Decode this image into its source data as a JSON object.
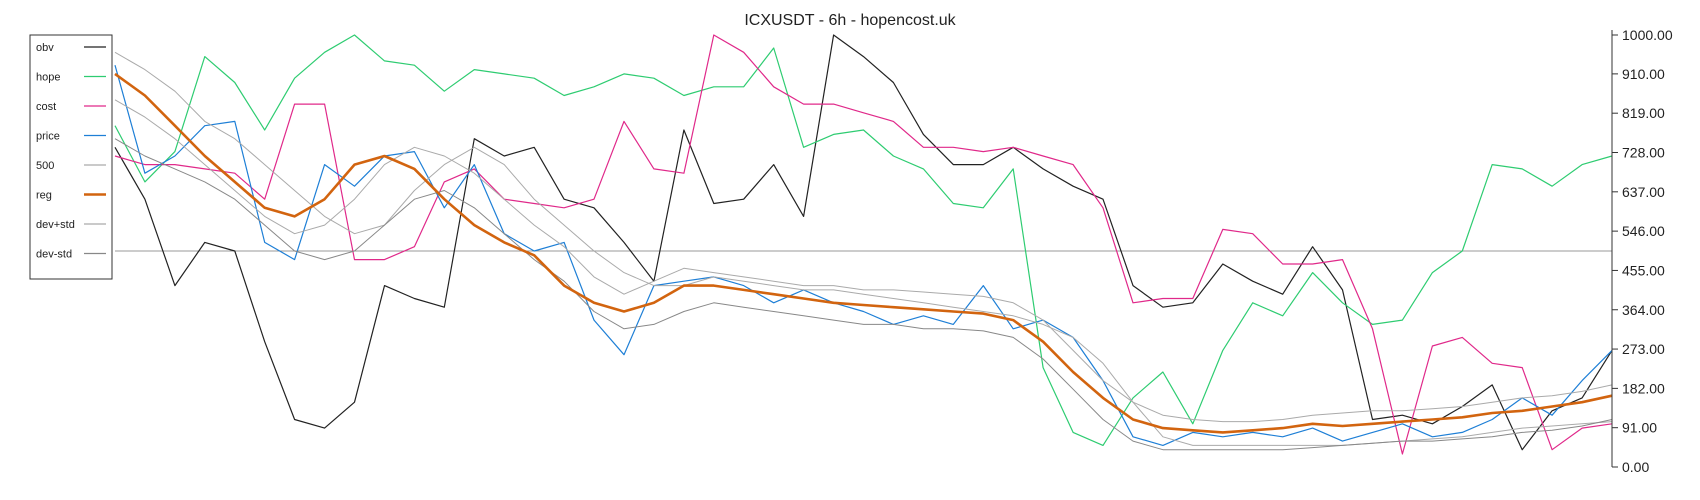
{
  "chart_data": {
    "type": "line",
    "title": "ICXUSDT - 6h - hopencost.uk",
    "xlabel": "",
    "ylabel": "",
    "ylim": [
      0,
      1000
    ],
    "y_ticks": [
      "0.00",
      "91.00",
      "182.00",
      "273.00",
      "364.00",
      "455.00",
      "546.00",
      "637.00",
      "728.00",
      "819.00",
      "910.00",
      "1000.00"
    ],
    "y_tick_values": [
      0,
      91,
      182,
      273,
      364,
      455,
      546,
      637,
      728,
      819,
      910,
      1000
    ],
    "y_axis_position": "right",
    "grid": false,
    "legend_position": "top-left",
    "reference_line": 500,
    "x": [
      0,
      0.02,
      0.04,
      0.06,
      0.08,
      0.1,
      0.12,
      0.14,
      0.16,
      0.18,
      0.2,
      0.22,
      0.24,
      0.26,
      0.28,
      0.3,
      0.32,
      0.34,
      0.36,
      0.38,
      0.4,
      0.42,
      0.44,
      0.46,
      0.48,
      0.5,
      0.52,
      0.54,
      0.56,
      0.58,
      0.6,
      0.62,
      0.64,
      0.66,
      0.68,
      0.7,
      0.72,
      0.74,
      0.76,
      0.78,
      0.8,
      0.82,
      0.84,
      0.86,
      0.88,
      0.9,
      0.92,
      0.94,
      0.96,
      0.98,
      1.0
    ],
    "series": [
      {
        "name": "obv",
        "color": "#222222",
        "width": 1.2,
        "values": [
          740,
          620,
          420,
          520,
          500,
          290,
          110,
          90,
          150,
          420,
          390,
          370,
          760,
          720,
          740,
          620,
          600,
          520,
          430,
          780,
          610,
          620,
          700,
          580,
          1000,
          950,
          890,
          770,
          700,
          700,
          740,
          690,
          650,
          620,
          420,
          370,
          380,
          470,
          430,
          400,
          510,
          410,
          110,
          120,
          100,
          140,
          190,
          40,
          130,
          160,
          270
        ]
      },
      {
        "name": "hope",
        "color": "#2ecc71",
        "width": 1.2,
        "values": [
          790,
          660,
          730,
          950,
          890,
          780,
          900,
          960,
          1000,
          940,
          930,
          870,
          920,
          910,
          900,
          860,
          880,
          910,
          900,
          860,
          880,
          880,
          970,
          740,
          770,
          780,
          720,
          690,
          610,
          600,
          690,
          230,
          80,
          50,
          160,
          220,
          100,
          270,
          380,
          350,
          450,
          380,
          330,
          340,
          450,
          500,
          700,
          690,
          650,
          700,
          720
        ]
      },
      {
        "name": "cost",
        "color": "#e0298a",
        "width": 1.2,
        "values": [
          720,
          700,
          700,
          690,
          680,
          620,
          840,
          840,
          480,
          480,
          510,
          660,
          690,
          620,
          610,
          600,
          620,
          800,
          690,
          680,
          1000,
          960,
          880,
          840,
          840,
          820,
          800,
          740,
          740,
          730,
          740,
          720,
          700,
          600,
          380,
          390,
          390,
          550,
          540,
          470,
          470,
          480,
          320,
          30,
          280,
          300,
          240,
          230,
          40,
          90,
          100
        ]
      },
      {
        "name": "price",
        "color": "#1e7fd6",
        "width": 1.2,
        "values": [
          930,
          680,
          720,
          790,
          800,
          520,
          480,
          700,
          650,
          720,
          730,
          600,
          700,
          540,
          500,
          520,
          340,
          260,
          420,
          430,
          440,
          420,
          380,
          410,
          380,
          360,
          330,
          350,
          330,
          420,
          320,
          340,
          300,
          200,
          70,
          50,
          80,
          70,
          80,
          70,
          90,
          60,
          80,
          100,
          70,
          80,
          110,
          160,
          120,
          200,
          270
        ]
      },
      {
        "name": "500",
        "color": "#aaaaaa",
        "width": 1.0,
        "values": [
          960,
          920,
          870,
          800,
          760,
          700,
          640,
          580,
          540,
          560,
          640,
          700,
          740,
          700,
          620,
          560,
          500,
          450,
          420,
          420,
          440,
          430,
          420,
          410,
          410,
          400,
          390,
          380,
          370,
          360,
          350,
          330,
          300,
          240,
          150,
          70,
          50,
          50,
          50,
          50,
          50,
          50,
          55,
          60,
          65,
          70,
          80,
          90,
          95,
          100,
          105
        ]
      },
      {
        "name": "reg",
        "color": "#d2640f",
        "width": 2.6,
        "values": [
          910,
          860,
          790,
          720,
          660,
          600,
          580,
          620,
          700,
          720,
          690,
          620,
          560,
          520,
          490,
          420,
          380,
          360,
          380,
          420,
          420,
          410,
          400,
          390,
          380,
          375,
          370,
          365,
          360,
          355,
          340,
          290,
          220,
          160,
          110,
          90,
          85,
          80,
          85,
          90,
          100,
          95,
          100,
          105,
          110,
          115,
          125,
          130,
          140,
          150,
          165
        ]
      },
      {
        "name": "dev+std",
        "color": "#aaaaaa",
        "width": 1.0,
        "values": [
          850,
          810,
          760,
          700,
          640,
          580,
          540,
          560,
          620,
          700,
          740,
          720,
          680,
          620,
          560,
          510,
          440,
          400,
          430,
          460,
          450,
          440,
          430,
          420,
          420,
          410,
          410,
          405,
          400,
          395,
          380,
          340,
          270,
          200,
          150,
          120,
          110,
          105,
          105,
          110,
          120,
          125,
          130,
          130,
          135,
          140,
          150,
          160,
          165,
          175,
          190
        ]
      },
      {
        "name": "dev-std",
        "color": "#888888",
        "width": 1.0,
        "values": [
          760,
          720,
          690,
          660,
          620,
          560,
          500,
          480,
          500,
          560,
          620,
          640,
          600,
          540,
          480,
          430,
          360,
          320,
          330,
          360,
          380,
          370,
          360,
          350,
          340,
          330,
          330,
          320,
          320,
          315,
          300,
          250,
          180,
          110,
          60,
          40,
          40,
          40,
          40,
          40,
          45,
          50,
          55,
          60,
          60,
          65,
          70,
          80,
          85,
          95,
          110
        ]
      }
    ]
  }
}
